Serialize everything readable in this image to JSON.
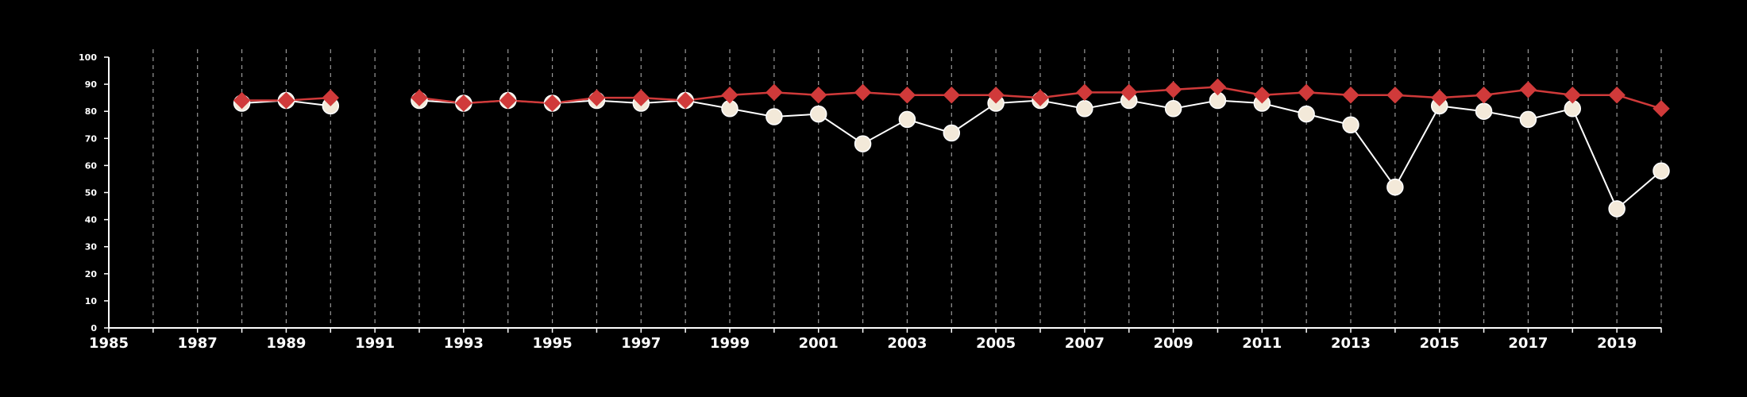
{
  "chart_data": {
    "type": "line",
    "title": "",
    "xlabel": "",
    "ylabel": "",
    "xlim": [
      1985,
      2020
    ],
    "ylim": [
      0,
      100
    ],
    "x_ticks": [
      1985,
      1987,
      1989,
      1991,
      1993,
      1995,
      1997,
      1999,
      2001,
      2003,
      2005,
      2007,
      2009,
      2011,
      2013,
      2015,
      2017,
      2019
    ],
    "y_ticks": [
      0,
      10,
      20,
      30,
      40,
      50,
      60,
      70,
      80,
      90,
      100
    ],
    "grid": "vertical dashed lines at each year",
    "legend": "none",
    "background_color": "#000000",
    "axis_color": "#ffffff",
    "grid_color": "#9a9a9a",
    "series": [
      {
        "marker": "circle",
        "color": "#ffffff",
        "marker_fill": "#f3e9d9",
        "points": [
          [
            1988,
            83
          ],
          [
            1989,
            84
          ],
          [
            1990,
            82
          ],
          [
            1992,
            84
          ],
          [
            1993,
            83
          ],
          [
            1994,
            84
          ],
          [
            1995,
            83
          ],
          [
            1996,
            84
          ],
          [
            1997,
            83
          ],
          [
            1998,
            84
          ],
          [
            1999,
            81
          ],
          [
            2000,
            78
          ],
          [
            2001,
            79
          ],
          [
            2002,
            68
          ],
          [
            2003,
            77
          ],
          [
            2004,
            72
          ],
          [
            2005,
            83
          ],
          [
            2006,
            84
          ],
          [
            2007,
            81
          ],
          [
            2008,
            84
          ],
          [
            2009,
            81
          ],
          [
            2010,
            84
          ],
          [
            2011,
            83
          ],
          [
            2012,
            79
          ],
          [
            2013,
            75
          ],
          [
            2014,
            52
          ],
          [
            2015,
            82
          ],
          [
            2016,
            80
          ],
          [
            2017,
            77
          ],
          [
            2018,
            81
          ],
          [
            2019,
            44
          ],
          [
            2020,
            58
          ]
        ]
      },
      {
        "marker": "diamond",
        "color": "#d03a3a",
        "marker_fill": "#d03a3a",
        "points": [
          [
            1988,
            84
          ],
          [
            1989,
            84
          ],
          [
            1990,
            85
          ],
          [
            1992,
            85
          ],
          [
            1993,
            83
          ],
          [
            1994,
            84
          ],
          [
            1995,
            83
          ],
          [
            1996,
            85
          ],
          [
            1997,
            85
          ],
          [
            1998,
            84
          ],
          [
            1999,
            86
          ],
          [
            2000,
            87
          ],
          [
            2001,
            86
          ],
          [
            2002,
            87
          ],
          [
            2003,
            86
          ],
          [
            2004,
            86
          ],
          [
            2005,
            86
          ],
          [
            2006,
            85
          ],
          [
            2007,
            87
          ],
          [
            2008,
            87
          ],
          [
            2009,
            88
          ],
          [
            2010,
            89
          ],
          [
            2011,
            86
          ],
          [
            2012,
            87
          ],
          [
            2013,
            86
          ],
          [
            2014,
            86
          ],
          [
            2015,
            85
          ],
          [
            2016,
            86
          ],
          [
            2017,
            88
          ],
          [
            2018,
            86
          ],
          [
            2019,
            86
          ],
          [
            2020,
            81
          ]
        ]
      }
    ]
  }
}
